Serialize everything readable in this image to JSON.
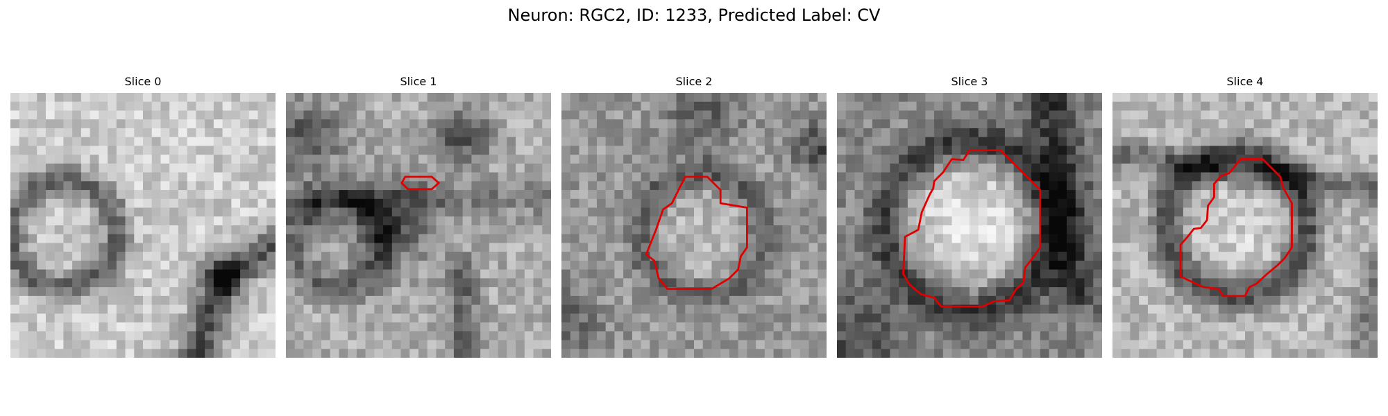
{
  "figure": {
    "suptitle": "Neuron: RGC2, ID: 1233, Predicted Label: CV"
  },
  "panels": [
    {
      "title": "Slice 0",
      "has_contour": false
    },
    {
      "title": "Slice 1",
      "has_contour": true
    },
    {
      "title": "Slice 2",
      "has_contour": true
    },
    {
      "title": "Slice 3",
      "has_contour": true
    },
    {
      "title": "Slice 4",
      "has_contour": true
    }
  ],
  "colors": {
    "contour": "#e00000",
    "colormap": "grayscale"
  }
}
